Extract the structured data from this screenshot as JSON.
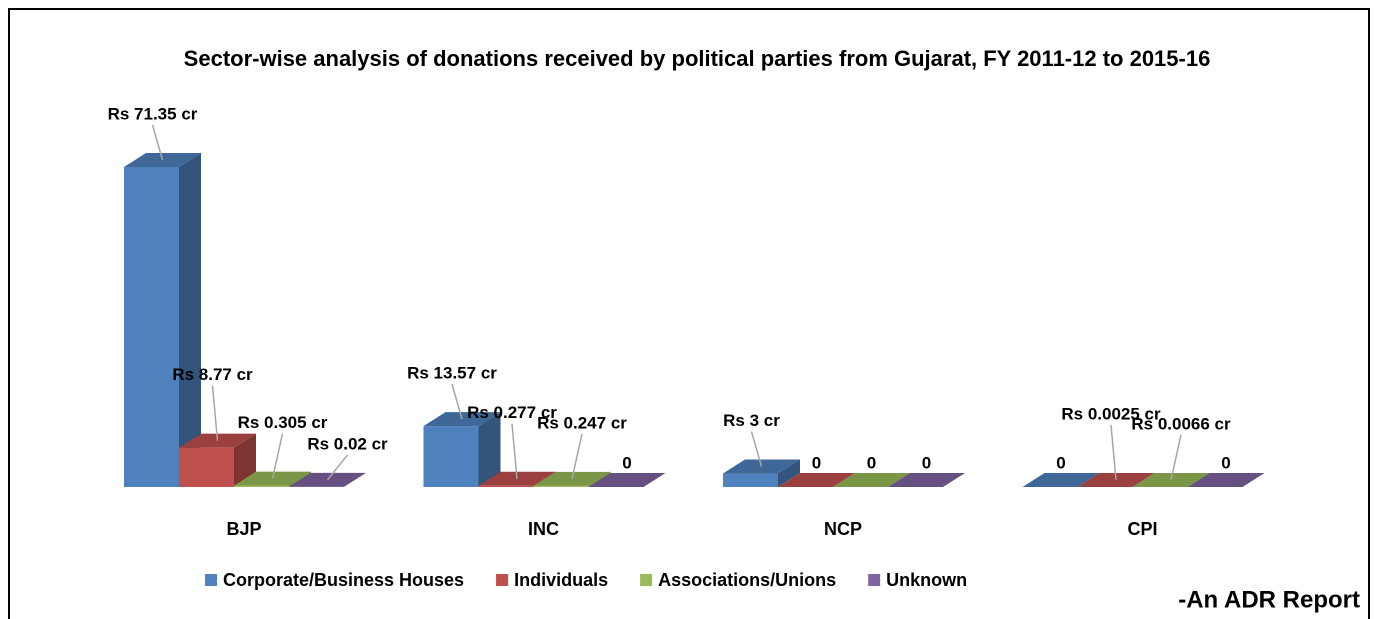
{
  "chart_data": {
    "type": "bar3d",
    "title": "Sector-wise analysis of donations received by political parties from Gujarat, FY 2011-12 to 2015-16",
    "categories": [
      "BJP",
      "INC",
      "NCP",
      "CPI"
    ],
    "series": [
      {
        "name": "Corporate/Business Houses",
        "color": "#4f81bd",
        "values": [
          71.35,
          13.57,
          3,
          0
        ],
        "value_labels": [
          "Rs 71.35 cr",
          "Rs 13.57 cr",
          "Rs 3 cr",
          "0"
        ]
      },
      {
        "name": "Individuals",
        "color": "#c0504d",
        "values": [
          8.77,
          0.277,
          0,
          0.0025
        ],
        "value_labels": [
          "Rs 8.77 cr",
          "Rs 0.277 cr",
          "0",
          "Rs 0.0025 cr"
        ]
      },
      {
        "name": "Associations/Unions",
        "color": "#9bbb59",
        "values": [
          0.305,
          0.247,
          0,
          0.0066
        ],
        "value_labels": [
          "Rs 0.305 cr",
          "Rs 0.247 cr",
          "0",
          "Rs 0.0066 cr"
        ]
      },
      {
        "name": "Unknown",
        "color": "#8064a2",
        "values": [
          0.02,
          0,
          0,
          0
        ],
        "value_labels": [
          "Rs 0.02 cr",
          "0",
          "0",
          "0"
        ]
      }
    ],
    "legend": "bottom",
    "source": "-An ADR Report"
  }
}
